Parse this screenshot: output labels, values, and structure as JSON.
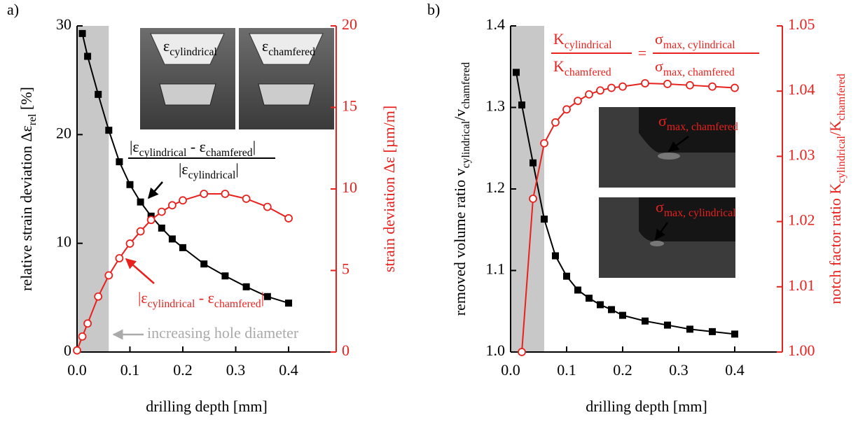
{
  "chart_data": [
    {
      "type": "line",
      "panel_label": "a)",
      "x_label": [
        {
          "text": "drilling depth [mm]"
        }
      ],
      "y_label": [
        {
          "text": "relative strain deviation Δε"
        },
        {
          "text": "rel",
          "sub": true
        },
        {
          "text": " [%]"
        }
      ],
      "y2_label": [
        {
          "text": "strain deviation Δε [µm/m]"
        }
      ],
      "xlim": [
        0,
        0.49
      ],
      "ylim": [
        0,
        30
      ],
      "y2lim": [
        0,
        20
      ],
      "xticks": [
        {
          "value": 0,
          "label": "0.0"
        },
        0.1,
        0.2,
        0.3,
        0.4
      ],
      "yticks": [
        0,
        10,
        20,
        30
      ],
      "y2ticks": [
        0,
        5,
        10,
        15,
        20
      ],
      "highlight": [
        0,
        0.06
      ],
      "series": [
        {
          "color": "#000000",
          "marker": "square",
          "axis": "y",
          "x": [
            0.01,
            0.02,
            0.04,
            0.06,
            0.08,
            0.1,
            0.12,
            0.14,
            0.16,
            0.18,
            0.2,
            0.24,
            0.28,
            0.32,
            0.36,
            0.4
          ],
          "values": [
            29.3,
            27.2,
            23.7,
            20.4,
            17.5,
            15.4,
            13.8,
            12.5,
            11.4,
            10.4,
            9.6,
            8.1,
            7.0,
            6.0,
            5.1,
            4.5
          ]
        },
        {
          "color": "#e8211d",
          "marker": "circle",
          "axis": "y2",
          "x": [
            0.0,
            0.01,
            0.02,
            0.04,
            0.06,
            0.08,
            0.1,
            0.12,
            0.14,
            0.16,
            0.18,
            0.2,
            0.24,
            0.28,
            0.32,
            0.36,
            0.4
          ],
          "values": [
            0.1,
            0.95,
            1.75,
            3.4,
            4.7,
            5.75,
            6.65,
            7.4,
            8.1,
            8.6,
            9.0,
            9.3,
            9.7,
            9.7,
            9.4,
            8.9,
            8.2
          ]
        }
      ],
      "annotations": [
        {
          "parts": [
            {
              "text": "|ε"
            },
            {
              "text": "cylindrical",
              "sub": true
            },
            {
              "text": " - ε"
            },
            {
              "text": "chamfered",
              "sub": true
            },
            {
              "text": "|"
            }
          ]
        },
        {
          "parts": [
            {
              "text": "|ε"
            },
            {
              "text": "cylindrical",
              "sub": true
            },
            {
              "text": "|"
            }
          ]
        },
        {
          "parts": [
            {
              "text": "|ε"
            },
            {
              "text": "cylindrical",
              "sub": true
            },
            {
              "text": " - ε"
            },
            {
              "text": "chamfered",
              "sub": true
            },
            {
              "text": "|"
            }
          ]
        },
        {
          "parts": [
            {
              "text": "increasing hole diameter"
            }
          ]
        },
        {
          "parts": [
            {
              "text": "ε"
            },
            {
              "text": "cylindrical",
              "sub": true
            }
          ]
        },
        {
          "parts": [
            {
              "text": "ε"
            },
            {
              "text": "chamfered",
              "sub": true
            }
          ]
        }
      ]
    },
    {
      "type": "line",
      "panel_label": "b)",
      "x_label": [
        {
          "text": "drilling depth [mm]"
        }
      ],
      "y_label": [
        {
          "text": "removed volume ratio v"
        },
        {
          "text": "cylindrical",
          "sub": true
        },
        {
          "text": "/v"
        },
        {
          "text": "chamfered",
          "sub": true
        }
      ],
      "y2_label": [
        {
          "text": "notch factor ratio K"
        },
        {
          "text": "cylindrical",
          "sub": true
        },
        {
          "text": "/K"
        },
        {
          "text": "chamfered",
          "sub": true
        }
      ],
      "xlim": [
        0,
        0.485
      ],
      "ylim": [
        1.0,
        1.4
      ],
      "y2lim": [
        1.0,
        1.05
      ],
      "xticks": [
        {
          "value": 0,
          "label": "0.0"
        },
        0.1,
        0.2,
        0.3,
        0.4
      ],
      "yticks": [
        {
          "value": 1.0,
          "label": "1.0"
        },
        1.1,
        1.2,
        1.3,
        1.4
      ],
      "y2ticks": [
        {
          "value": 1.0,
          "label": "1.00"
        },
        1.01,
        1.02,
        1.03,
        1.04,
        1.05
      ],
      "highlight": [
        0,
        0.06
      ],
      "series": [
        {
          "color": "#000000",
          "marker": "square",
          "axis": "y",
          "x": [
            0.01,
            0.02,
            0.04,
            0.06,
            0.08,
            0.1,
            0.12,
            0.14,
            0.16,
            0.18,
            0.2,
            0.24,
            0.28,
            0.32,
            0.36,
            0.4
          ],
          "values": [
            1.343,
            1.303,
            1.232,
            1.163,
            1.118,
            1.093,
            1.076,
            1.066,
            1.058,
            1.052,
            1.045,
            1.038,
            1.033,
            1.028,
            1.025,
            1.022
          ]
        },
        {
          "color": "#e8211d",
          "marker": "circle",
          "axis": "y2",
          "x": [
            0.02,
            0.04,
            0.06,
            0.08,
            0.1,
            0.12,
            0.14,
            0.16,
            0.18,
            0.2,
            0.24,
            0.28,
            0.32,
            0.36,
            0.4
          ],
          "values": [
            1.0,
            1.0235,
            1.032,
            1.0352,
            1.0372,
            1.0385,
            1.0395,
            1.0401,
            1.0405,
            1.0407,
            1.0412,
            1.0411,
            1.0409,
            1.0407,
            1.0405
          ]
        }
      ],
      "annotations": [
        {
          "parts": [
            {
              "text": "K"
            },
            {
              "text": "cylindrical",
              "sub": true
            }
          ]
        },
        {
          "parts": [
            {
              "text": "K"
            },
            {
              "text": "chamfered",
              "sub": true
            }
          ]
        },
        {
          "parts": [
            {
              "text": "="
            }
          ]
        },
        {
          "parts": [
            {
              "text": "σ"
            },
            {
              "text": "max, cylindrical",
              "sub": true
            }
          ]
        },
        {
          "parts": [
            {
              "text": "σ"
            },
            {
              "text": "max, chamfered",
              "sub": true
            }
          ]
        },
        {
          "parts": [
            {
              "text": "σ"
            },
            {
              "text": "max, chamfered",
              "sub": true
            }
          ]
        },
        {
          "parts": [
            {
              "text": "σ"
            },
            {
              "text": "max, cylindrical",
              "sub": true
            }
          ]
        }
      ]
    }
  ]
}
